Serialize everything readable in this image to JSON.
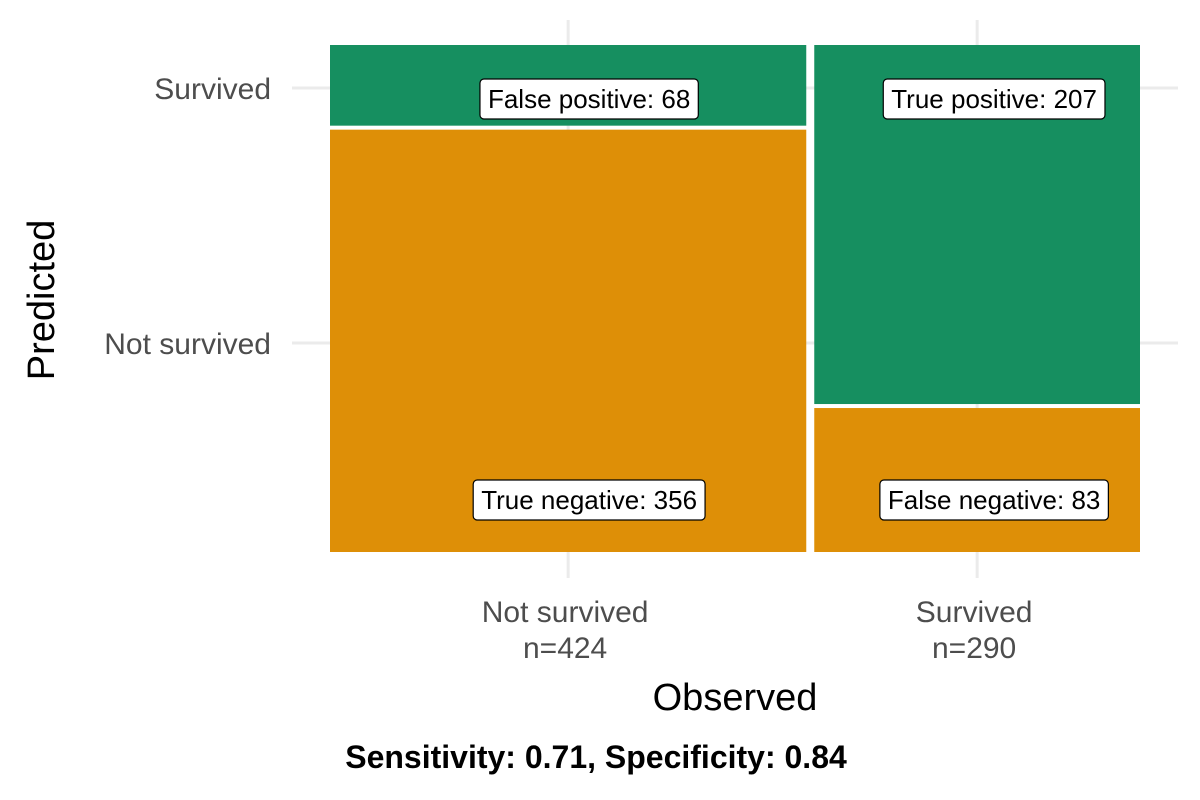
{
  "chart_data": {
    "type": "mosaic",
    "xlabel": "Observed",
    "ylabel": "Predicted",
    "caption": "Sensitivity: 0.71, Specificity: 0.84",
    "columns": [
      {
        "label": "Not survived",
        "n_label": "n=424",
        "n": 424,
        "cells": [
          {
            "predicted": "Not survived",
            "count": 356,
            "label": "True negative: 356"
          },
          {
            "predicted": "Survived",
            "count": 68,
            "label": "False positive: 68"
          }
        ]
      },
      {
        "label": "Survived",
        "n_label": "n=290",
        "n": 290,
        "cells": [
          {
            "predicted": "Not survived",
            "count": 83,
            "label": "False negative: 83"
          },
          {
            "predicted": "Survived",
            "count": 207,
            "label": "True positive: 207"
          }
        ]
      }
    ],
    "y_ticks": [
      "Survived",
      "Not survived"
    ],
    "colors": {
      "Not survived": "#de8f07",
      "Survived": "#168f60"
    },
    "grid": true
  }
}
